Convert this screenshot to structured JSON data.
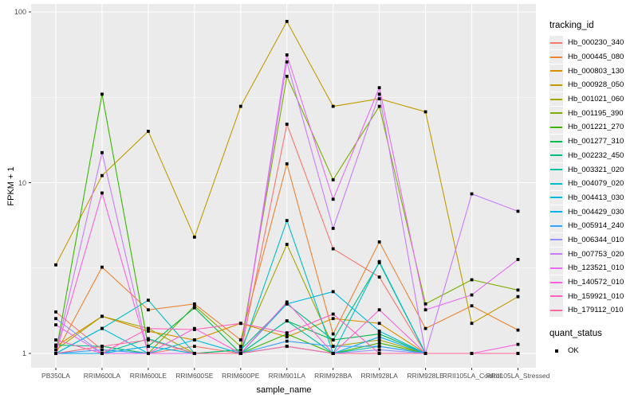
{
  "chart_data": {
    "type": "line",
    "title": "",
    "xlabel": "sample_name",
    "ylabel": "FPKM + 1",
    "y_scale": "log10",
    "y_ticks": [
      1,
      10,
      100
    ],
    "ylim": [
      0.82,
      110
    ],
    "grid": "white-on-gray-panel",
    "panel_bg": "#ebebeb",
    "grid_color": "#ffffff",
    "marker": "black-square",
    "legend_position": "right",
    "legend_title": "tracking_id",
    "legend2_title": "quant_status",
    "legend2_items": [
      "OK"
    ],
    "categories": [
      "PB350LA",
      "RRIM600LA",
      "RRIM600LE",
      "RRIM600SE",
      "RRIM600PE",
      "RRIM901LA",
      "RRIM928BA",
      "RRIM928LA",
      "RRIM928LE",
      "RRII105LA_Control",
      "RRII105LA_Stressed"
    ],
    "series": [
      {
        "name": "Hb_000230_340",
        "color": "#F8766D",
        "values": [
          1.75,
          1.05,
          1.0,
          1.1,
          1.0,
          22,
          4.1,
          2.8,
          1.0,
          1.0,
          1.0
        ]
      },
      {
        "name": "Hb_000445_080",
        "color": "#EA8331",
        "values": [
          1.0,
          3.2,
          1.8,
          1.95,
          1.2,
          12.9,
          1.3,
          4.5,
          1.4,
          1.9,
          1.37
        ]
      },
      {
        "name": "Hb_000803_130",
        "color": "#D89000",
        "values": [
          1.1,
          1.65,
          1.35,
          1.2,
          1.5,
          1.25,
          1.6,
          1.5,
          1.0,
          1.0,
          1.0
        ]
      },
      {
        "name": "Hb_000928_050",
        "color": "#C09B00",
        "values": [
          3.3,
          11,
          20,
          4.8,
          28,
          88,
          28,
          31,
          26,
          1.5,
          2.15
        ]
      },
      {
        "name": "Hb_001021_060",
        "color": "#A3A500",
        "values": [
          1.05,
          1.65,
          1.4,
          1.0,
          1.05,
          4.35,
          1.1,
          1.2,
          1.0,
          1.0,
          1.0
        ]
      },
      {
        "name": "Hb_001195_390",
        "color": "#7CAE00",
        "values": [
          1.0,
          1.1,
          1.0,
          1.9,
          1.1,
          42,
          10.4,
          28,
          1.95,
          2.7,
          2.35
        ]
      },
      {
        "name": "Hb_001221_270",
        "color": "#39B600",
        "values": [
          1.0,
          33,
          1.1,
          1.0,
          1.0,
          1.3,
          1.0,
          1.15,
          1.0,
          1.0,
          1.0
        ]
      },
      {
        "name": "Hb_001277_310",
        "color": "#00BB4E",
        "values": [
          1.0,
          1.0,
          1.1,
          1.85,
          1.0,
          1.55,
          1.2,
          1.3,
          1.0,
          1.0,
          1.0
        ]
      },
      {
        "name": "Hb_002232_450",
        "color": "#00BF7D",
        "values": [
          1.12,
          1.1,
          1.0,
          1.0,
          1.05,
          1.95,
          1.2,
          3.4,
          1.0,
          1.0,
          1.0
        ]
      },
      {
        "name": "Hb_003321_020",
        "color": "#00C1A3",
        "values": [
          1.0,
          1.0,
          1.22,
          1.0,
          1.0,
          1.55,
          1.0,
          1.1,
          1.0,
          1.0,
          1.0
        ]
      },
      {
        "name": "Hb_004079_020",
        "color": "#00BFC4",
        "values": [
          1.0,
          1.4,
          2.05,
          1.0,
          1.0,
          6.0,
          1.0,
          3.45,
          1.0,
          1.0,
          1.0
        ]
      },
      {
        "name": "Hb_004413_030",
        "color": "#00BAE0",
        "values": [
          1.0,
          1.4,
          1.0,
          1.2,
          1.0,
          1.95,
          2.3,
          1.35,
          1.0,
          1.0,
          1.0
        ]
      },
      {
        "name": "Hb_004429_030",
        "color": "#00B0F6",
        "values": [
          1.0,
          1.0,
          1.1,
          1.0,
          1.0,
          1.1,
          1.0,
          1.25,
          1.0,
          1.0,
          1.0
        ]
      },
      {
        "name": "Hb_005914_240",
        "color": "#35A2FF",
        "values": [
          1.0,
          1.05,
          1.0,
          1.0,
          1.0,
          1.18,
          1.1,
          1.1,
          1.0,
          1.0,
          1.0
        ]
      },
      {
        "name": "Hb_006344_010",
        "color": "#9590FF",
        "values": [
          1.6,
          1.0,
          1.0,
          1.0,
          1.0,
          1.1,
          1.0,
          1.05,
          1.0,
          1.0,
          1.0
        ]
      },
      {
        "name": "Hb_007753_020",
        "color": "#C77CFF",
        "values": [
          1.0,
          15,
          1.0,
          1.0,
          1.0,
          51,
          5.4,
          33,
          1.0,
          8.6,
          6.8
        ]
      },
      {
        "name": "Hb_123521_010",
        "color": "#E76BF3",
        "values": [
          1.47,
          1.0,
          1.0,
          1.0,
          1.0,
          56,
          8.0,
          36,
          1.8,
          2.2,
          3.55
        ]
      },
      {
        "name": "Hb_140572_010",
        "color": "#FA62DB",
        "values": [
          1.0,
          8.7,
          1.0,
          1.4,
          1.0,
          2.0,
          1.0,
          1.8,
          1.0,
          1.0,
          1.13
        ]
      },
      {
        "name": "Hb_159921_010",
        "color": "#FF62BC",
        "values": [
          1.2,
          1.0,
          1.4,
          1.38,
          1.5,
          1.32,
          1.7,
          1.0,
          1.0,
          1.0,
          1.0
        ]
      },
      {
        "name": "Hb_179112_010",
        "color": "#FF6A98",
        "values": [
          1.0,
          1.1,
          1.2,
          1.0,
          1.0,
          1.1,
          1.0,
          1.0,
          1.0,
          1.0,
          1.0
        ]
      }
    ]
  }
}
